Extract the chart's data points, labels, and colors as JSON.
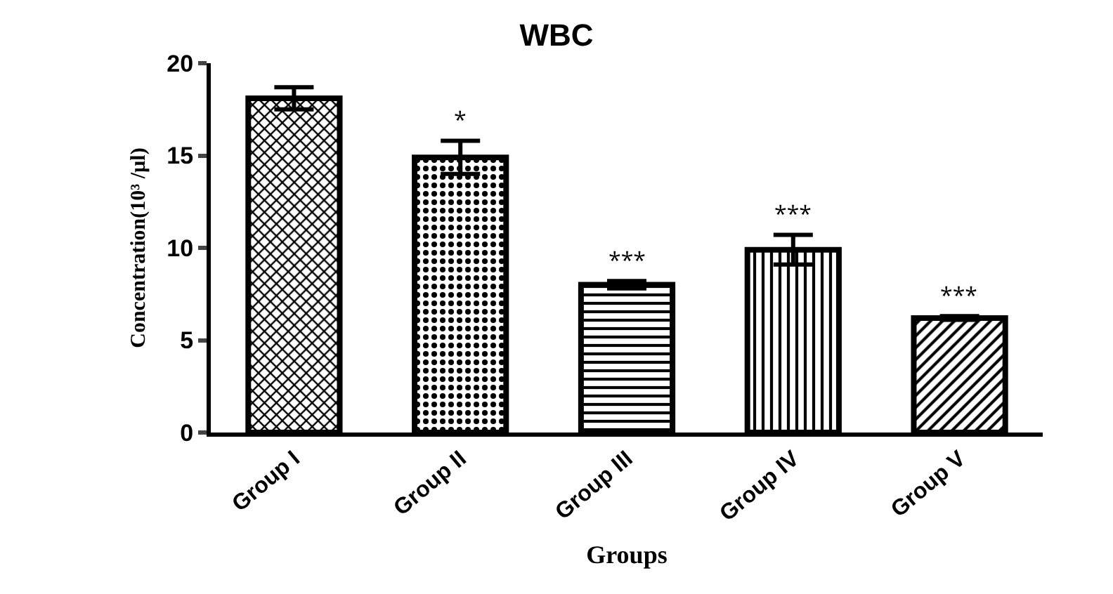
{
  "chart_data": {
    "type": "bar",
    "title": "WBC",
    "xlabel": "Groups",
    "ylabel": "Concentration(10³ /µl)",
    "categories": [
      "Group I",
      "Group II",
      "Group III",
      "Group IV",
      "Group V"
    ],
    "values": [
      18.1,
      14.9,
      8.0,
      9.9,
      6.2
    ],
    "errors": [
      0.6,
      0.9,
      0.2,
      0.8,
      0.1
    ],
    "color": "#000000",
    "ylim": [
      0,
      20
    ],
    "yticks": [
      0,
      5,
      10,
      15,
      20
    ],
    "grid": false,
    "legend": false,
    "value_labels": [
      null,
      "*",
      "***",
      "***",
      "***"
    ]
  }
}
